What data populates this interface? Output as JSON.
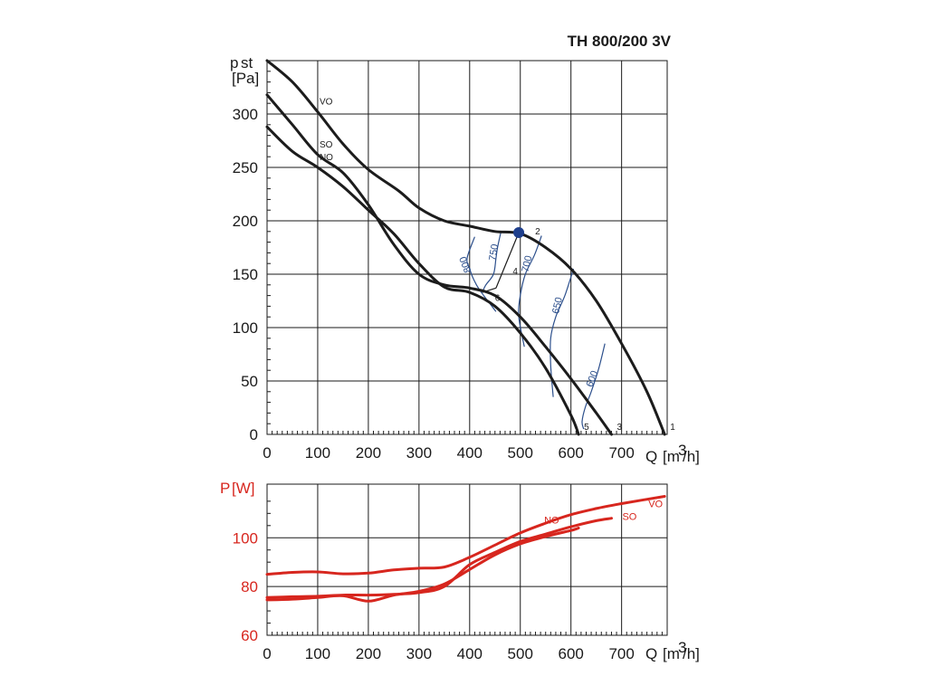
{
  "title": "TH 800/200 3V",
  "chart_data": [
    {
      "type": "line",
      "ylabel_main": "p",
      "ylabel_sub": "st",
      "ylabel_unit": "[Pa]",
      "xlabel": "Q",
      "xunit_pre": "[m",
      "xunit_sup": "3",
      "xunit_post": "/h]",
      "xlim": [
        0,
        790
      ],
      "ylim": [
        0,
        350
      ],
      "xticks": [
        0,
        100,
        200,
        300,
        400,
        500,
        600,
        700
      ],
      "yticks": [
        0,
        50,
        100,
        150,
        200,
        250,
        300
      ],
      "series": [
        {
          "name": "VO",
          "end_label": "1",
          "x": [
            0,
            50,
            100,
            150,
            200,
            260,
            300,
            350,
            400,
            450,
            500,
            550,
            600,
            650,
            700,
            750,
            785
          ],
          "y": [
            350,
            330,
            302,
            272,
            248,
            228,
            212,
            200,
            195,
            190,
            188,
            175,
            155,
            125,
            85,
            40,
            0
          ]
        },
        {
          "name": "SO",
          "end_label": "3",
          "x": [
            0,
            50,
            100,
            150,
            200,
            250,
            300,
            350,
            400,
            450,
            500,
            550,
            600,
            650,
            680
          ],
          "y": [
            318,
            290,
            262,
            245,
            215,
            178,
            150,
            140,
            137,
            130,
            110,
            82,
            52,
            20,
            0
          ]
        },
        {
          "name": "NO",
          "end_label": "5",
          "x": [
            0,
            50,
            100,
            150,
            200,
            250,
            300,
            350,
            400,
            450,
            500,
            550,
            600,
            615
          ],
          "y": [
            288,
            265,
            250,
            232,
            210,
            188,
            160,
            138,
            133,
            120,
            95,
            62,
            18,
            0
          ]
        }
      ],
      "operating_point": {
        "x": 497,
        "y": 189,
        "label": "2"
      },
      "point_labels": [
        {
          "text": "4",
          "x": 485,
          "y": 150
        },
        {
          "text": "6",
          "x": 450,
          "y": 125
        }
      ],
      "iso_lines": [
        {
          "label": "800",
          "x": [
            410,
            395,
            400,
            408,
            420,
            452
          ],
          "y": [
            185,
            165,
            155,
            145,
            135,
            115
          ]
        },
        {
          "label": "750",
          "x": [
            462,
            455,
            452,
            447,
            432,
            425
          ],
          "y": [
            190,
            175,
            165,
            150,
            140,
            133
          ]
        },
        {
          "label": "700",
          "x": [
            542,
            528,
            510,
            500,
            497,
            508
          ],
          "y": [
            186,
            168,
            150,
            130,
            110,
            82
          ]
        },
        {
          "label": "650",
          "x": [
            605,
            588,
            570,
            560,
            560,
            565
          ],
          "y": [
            155,
            130,
            110,
            90,
            65,
            35
          ]
        },
        {
          "label": "600",
          "x": [
            667,
            655,
            640,
            628,
            622,
            625
          ],
          "y": [
            85,
            62,
            40,
            25,
            12,
            5
          ]
        }
      ]
    },
    {
      "type": "line",
      "ylabel_main": "P",
      "ylabel_unit": "[W]",
      "xlabel": "Q",
      "xunit_pre": "[m",
      "xunit_sup": "3",
      "xunit_post": "/h]",
      "xlim": [
        0,
        790
      ],
      "ylim": [
        60,
        122
      ],
      "xticks": [
        0,
        100,
        200,
        300,
        400,
        500,
        600,
        700
      ],
      "yticks": [
        60,
        80,
        100
      ],
      "series": [
        {
          "name": "VO",
          "x": [
            0,
            50,
            100,
            150,
            200,
            250,
            300,
            350,
            400,
            450,
            500,
            550,
            600,
            650,
            700,
            785
          ],
          "y": [
            85,
            85.8,
            86,
            85.2,
            85.5,
            86.8,
            87.5,
            88,
            92,
            97,
            102,
            106,
            109.5,
            112,
            114,
            117
          ]
        },
        {
          "name": "SO",
          "x": [
            0,
            50,
            100,
            150,
            200,
            250,
            300,
            350,
            400,
            450,
            500,
            550,
            600,
            650,
            680
          ],
          "y": [
            75.5,
            75.8,
            76,
            76.5,
            76.5,
            76.8,
            77.5,
            80,
            89,
            94,
            98.5,
            101.5,
            104.5,
            107,
            108
          ]
        },
        {
          "name": "NO",
          "x": [
            0,
            50,
            100,
            150,
            200,
            250,
            300,
            350,
            400,
            450,
            500,
            550,
            600,
            615
          ],
          "y": [
            74.5,
            74.8,
            75.5,
            76.2,
            74,
            76.5,
            78,
            81,
            87,
            93,
            97.5,
            100.5,
            103,
            104
          ]
        }
      ]
    }
  ]
}
